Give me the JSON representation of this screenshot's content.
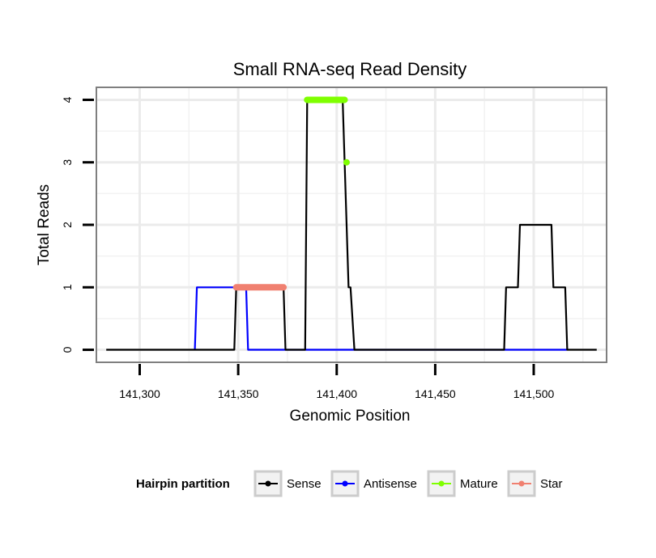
{
  "chart_data": {
    "type": "line",
    "title": "Small RNA-seq Read Density",
    "xlabel": "Genomic Position",
    "ylabel": "Total Reads",
    "xlim": [
      141278,
      141537
    ],
    "ylim": [
      -0.2,
      4.2
    ],
    "x_ticks": [
      141300,
      141350,
      141400,
      141450,
      141500
    ],
    "x_tick_labels": [
      "141,300",
      "141,350",
      "141,400",
      "141,450",
      "141,500"
    ],
    "y_ticks": [
      0,
      1,
      2,
      3,
      4
    ],
    "y_tick_labels": [
      "0",
      "1",
      "2",
      "3",
      "4"
    ],
    "grid": true,
    "legend": {
      "title": "Hairpin partition",
      "position": "bottom",
      "entries": [
        {
          "name": "Sense",
          "color": "#000000"
        },
        {
          "name": "Antisense",
          "color": "#0000ff"
        },
        {
          "name": "Mature",
          "color": "#7fff00"
        },
        {
          "name": "Star",
          "color": "#f08070"
        }
      ]
    },
    "series": [
      {
        "name": "Sense",
        "color": "#000000",
        "x": [
          141283,
          141348,
          141349,
          141373,
          141374,
          141384,
          141385,
          141403,
          141406,
          141407,
          141409,
          141410,
          141485,
          141486,
          141492,
          141493,
          141509,
          141510,
          141516,
          141517,
          141532
        ],
        "y": [
          0,
          0,
          1,
          1,
          0,
          0,
          4,
          4,
          1,
          1,
          0,
          0,
          0,
          1,
          1,
          2,
          2,
          1,
          1,
          0,
          0
        ]
      },
      {
        "name": "Antisense",
        "color": "#0000ff",
        "x": [
          141328,
          141329,
          141354,
          141355,
          141409,
          141410,
          141517
        ],
        "y": [
          0,
          1,
          1,
          0,
          0,
          0,
          0
        ]
      },
      {
        "name": "Mature",
        "color": "#7fff00",
        "segments": [
          {
            "x": [
              141385,
              141404
            ],
            "y": [
              4,
              4
            ]
          }
        ],
        "points": [
          {
            "x": 141405,
            "y": 3
          }
        ]
      },
      {
        "name": "Star",
        "color": "#f08070",
        "segments": [
          {
            "x": [
              141349,
              141373
            ],
            "y": [
              1,
              1
            ]
          }
        ]
      }
    ]
  }
}
